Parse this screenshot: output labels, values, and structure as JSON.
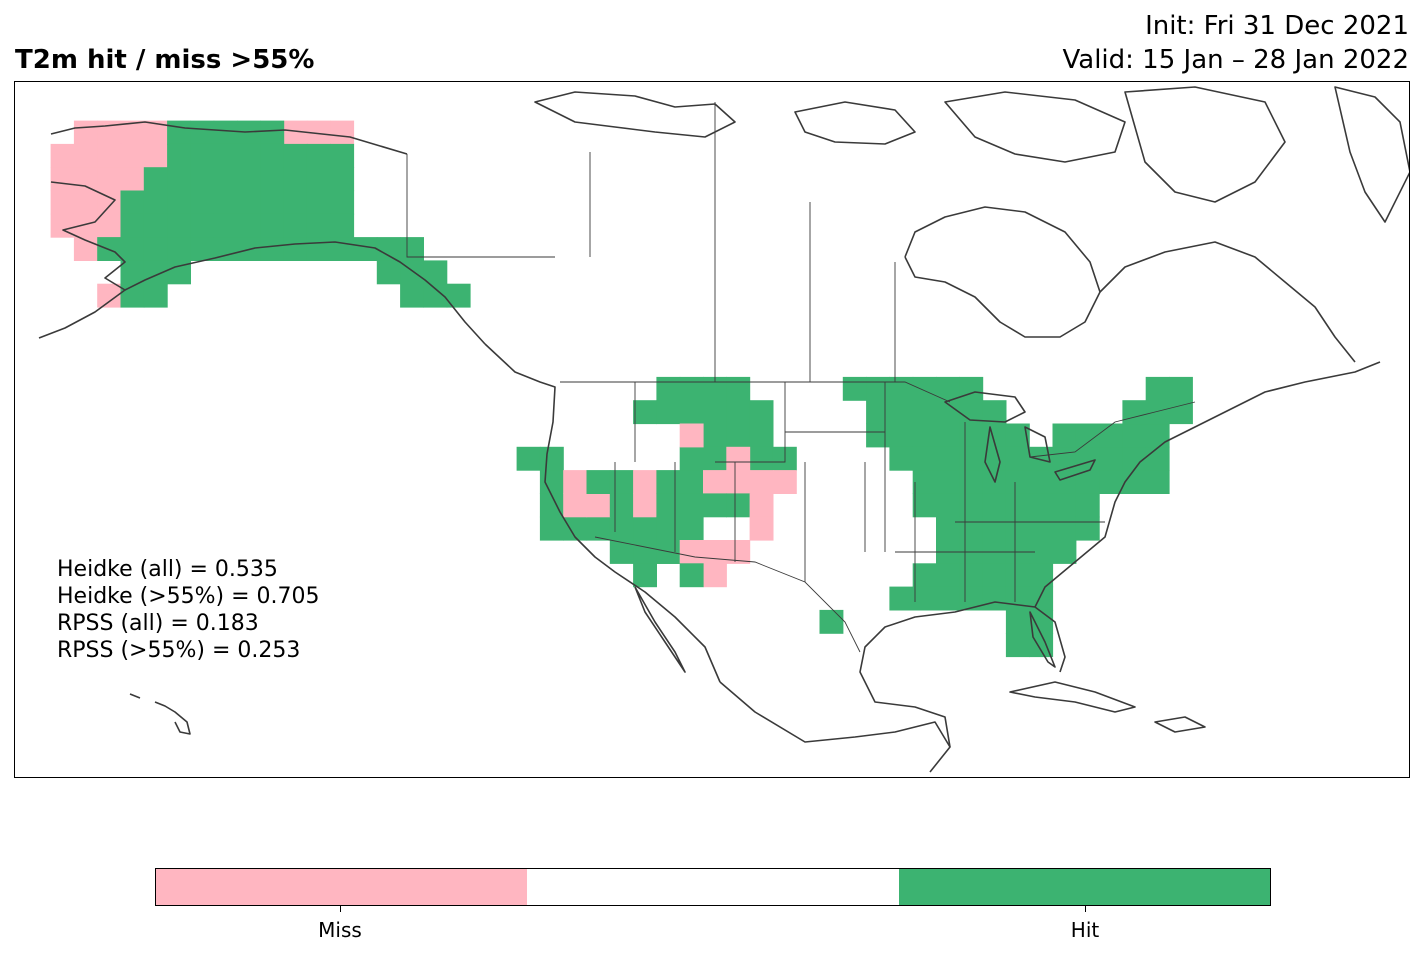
{
  "header": {
    "title": "T2m hit / miss  >55%",
    "init": "Init: Fri 31 Dec 2021",
    "valid": "Valid: 15 Jan – 28 Jan 2022"
  },
  "stats": [
    "Heidke (all) = 0.535",
    "Heidke (>55%) = 0.705",
    "RPSS (all) = 0.183",
    "RPSS (>55%) = 0.253"
  ],
  "legend": {
    "categories": [
      {
        "label": "Miss",
        "color": "#ffb6c1"
      },
      {
        "label": "",
        "color": "#ffffff"
      },
      {
        "label": "Hit",
        "color": "#3cb371"
      }
    ]
  },
  "colors": {
    "hit": "#3cb371",
    "miss": "#ffb6c1",
    "coastline": "#3a3a3a"
  }
}
